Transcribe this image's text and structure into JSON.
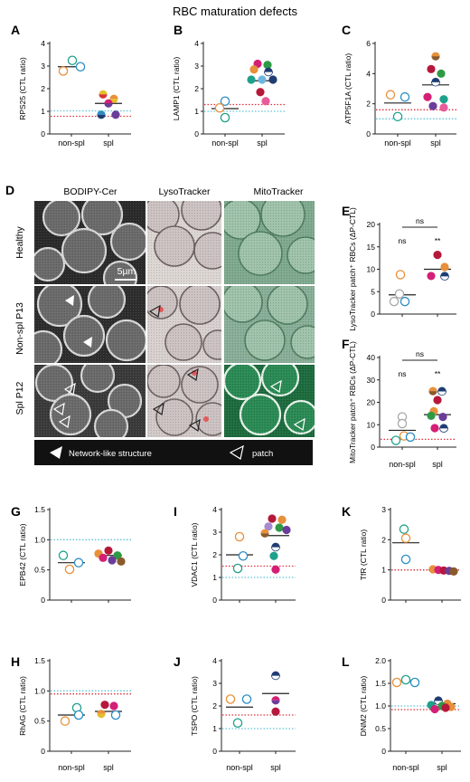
{
  "figure": {
    "title": "RBC maturation defects"
  },
  "panel_d": {
    "label": "D",
    "columns": [
      "BODIPY-Cer",
      "LysoTracker",
      "MitoTracker"
    ],
    "rows": [
      "Healthy",
      "Non-spl P13",
      "Spl P12"
    ],
    "scale_bar": "5µm",
    "legend": {
      "network": "Network-like structure",
      "patch": "patch"
    }
  },
  "colors": {
    "red_dotted": "#e0313e",
    "blue_dotted": "#5fc3d8",
    "mean_line": "#222222"
  },
  "chart_data": [
    {
      "id": "A",
      "type": "scatter",
      "ylabel": "RPS25 (CTL ratio)",
      "ylim": [
        0,
        4
      ],
      "yticks": [
        0,
        1,
        2,
        3,
        4
      ],
      "categories": [
        "non-spl",
        "spl"
      ],
      "ref_red": 0.78,
      "ref_blue": 1.02,
      "points": [
        {
          "cat": 0,
          "y": 2.78,
          "dx": -9,
          "style": "orange-o"
        },
        {
          "cat": 0,
          "y": 3.25,
          "dx": 1,
          "style": "teal-o"
        },
        {
          "cat": 0,
          "y": 2.97,
          "dx": 10,
          "style": "blue-o"
        },
        {
          "cat": 1,
          "y": 1.75,
          "dx": -6,
          "style": "yellow-red"
        },
        {
          "cat": 1,
          "y": 1.55,
          "dx": 6,
          "style": "orange-yellow"
        },
        {
          "cat": 1,
          "y": 1.35,
          "dx": 0,
          "style": "magenta-purple"
        },
        {
          "cat": 1,
          "y": 0.85,
          "dx": -8,
          "style": "blue-navy"
        },
        {
          "cat": 1,
          "y": 0.85,
          "dx": 8,
          "style": "purple"
        }
      ],
      "means": [
        2.97,
        1.35
      ]
    },
    {
      "id": "B",
      "type": "scatter",
      "ylabel": "LAMP1 (CTL ratio)",
      "ylim": [
        0,
        4
      ],
      "yticks": [
        0,
        1,
        2,
        3,
        4
      ],
      "categories": [
        "non-spl",
        "spl"
      ],
      "ref_red": 1.3,
      "ref_blue": 1.0,
      "points": [
        {
          "cat": 0,
          "y": 1.45,
          "dx": 0,
          "style": "blue-o"
        },
        {
          "cat": 0,
          "y": 1.15,
          "dx": -6,
          "style": "orange-o"
        },
        {
          "cat": 0,
          "y": 0.72,
          "dx": 0,
          "style": "teal-o"
        },
        {
          "cat": 1,
          "y": 3.1,
          "dx": -5,
          "style": "magenta"
        },
        {
          "cat": 1,
          "y": 3.05,
          "dx": 6,
          "style": "green"
        },
        {
          "cat": 1,
          "y": 2.85,
          "dx": -9,
          "style": "orange"
        },
        {
          "cat": 1,
          "y": 2.75,
          "dx": 7,
          "style": "navy-white"
        },
        {
          "cat": 1,
          "y": 2.4,
          "dx": -12,
          "style": "teal"
        },
        {
          "cat": 1,
          "y": 2.4,
          "dx": 0,
          "style": "lightblue"
        },
        {
          "cat": 1,
          "y": 2.4,
          "dx": 12,
          "style": "navy"
        },
        {
          "cat": 1,
          "y": 1.85,
          "dx": -2,
          "style": "crimson"
        },
        {
          "cat": 1,
          "y": 1.45,
          "dx": 4,
          "style": "pink"
        }
      ],
      "means": [
        1.12,
        2.35
      ]
    },
    {
      "id": "C",
      "type": "scatter",
      "ylabel": "ATP5F1A (CTL ratio)",
      "ylim": [
        0,
        6
      ],
      "yticks": [
        0,
        2,
        4,
        6
      ],
      "categories": [
        "non-spl",
        "spl"
      ],
      "ref_red": 1.6,
      "ref_blue": 1.0,
      "points": [
        {
          "cat": 0,
          "y": 2.6,
          "dx": -8,
          "style": "orange-o"
        },
        {
          "cat": 0,
          "y": 2.45,
          "dx": 8,
          "style": "blue-o"
        },
        {
          "cat": 0,
          "y": 1.15,
          "dx": 0,
          "style": "teal-o"
        },
        {
          "cat": 1,
          "y": 5.15,
          "dx": 0,
          "style": "orange-brown"
        },
        {
          "cat": 1,
          "y": 4.3,
          "dx": -5,
          "style": "crimson"
        },
        {
          "cat": 1,
          "y": 4.0,
          "dx": 6,
          "style": "green"
        },
        {
          "cat": 1,
          "y": 3.45,
          "dx": 0,
          "style": "navy-white"
        },
        {
          "cat": 1,
          "y": 2.45,
          "dx": -9,
          "style": "magenta"
        },
        {
          "cat": 1,
          "y": 2.3,
          "dx": 9,
          "style": "teal"
        },
        {
          "cat": 1,
          "y": 1.85,
          "dx": -3,
          "style": "purple"
        },
        {
          "cat": 1,
          "y": 1.75,
          "dx": 9,
          "style": "pink"
        }
      ],
      "means": [
        2.05,
        3.25
      ]
    },
    {
      "id": "E",
      "type": "scatter",
      "ylabel": "LysoTracker patch⁺ RBCs (ΔP-CTL)",
      "ylim": [
        0,
        20
      ],
      "yticks": [
        0,
        5,
        10,
        15,
        20
      ],
      "categories": [
        "",
        ""
      ],
      "ref_red": null,
      "ref_blue": null,
      "sig": {
        "bracket": "ns",
        "left": "ns",
        "right": "**"
      },
      "points": [
        {
          "cat": 0,
          "y": 8.8,
          "dx": -2,
          "style": "orange-o"
        },
        {
          "cat": 0,
          "y": 4.5,
          "dx": -3,
          "style": "gray-o"
        },
        {
          "cat": 0,
          "y": 2.8,
          "dx": -9,
          "style": "gray-o"
        },
        {
          "cat": 0,
          "y": 2.8,
          "dx": 3,
          "style": "blue-o"
        },
        {
          "cat": 1,
          "y": 13.2,
          "dx": 0,
          "style": "crimson"
        },
        {
          "cat": 1,
          "y": 10.5,
          "dx": 8,
          "style": "orange"
        },
        {
          "cat": 1,
          "y": 8.5,
          "dx": -7,
          "style": "magenta"
        },
        {
          "cat": 1,
          "y": 8.5,
          "dx": 8,
          "style": "navy-white"
        }
      ],
      "means": [
        4.3,
        10.0
      ]
    },
    {
      "id": "F",
      "type": "scatter",
      "ylabel": "MitoTracker patch⁺ RBCs (ΔP-CTL)",
      "ylim": [
        0,
        40
      ],
      "yticks": [
        0,
        10,
        20,
        30,
        40
      ],
      "categories": [
        "non-spl",
        "spl"
      ],
      "ref_red": 3.5,
      "ref_blue": null,
      "sig": {
        "bracket": "ns",
        "left": "ns",
        "right": "**"
      },
      "points": [
        {
          "cat": 0,
          "y": 13.5,
          "dx": 0,
          "style": "gray-o"
        },
        {
          "cat": 0,
          "y": 10.5,
          "dx": 0,
          "style": "gray-o"
        },
        {
          "cat": 0,
          "y": 5.0,
          "dx": 2,
          "style": "orange-o"
        },
        {
          "cat": 0,
          "y": 4.5,
          "dx": 9,
          "style": "blue-o"
        },
        {
          "cat": 0,
          "y": 3.0,
          "dx": -7,
          "style": "teal-o"
        },
        {
          "cat": 1,
          "y": 25.0,
          "dx": -5,
          "style": "orange-brown"
        },
        {
          "cat": 1,
          "y": 25.0,
          "dx": 5,
          "style": "navy-white"
        },
        {
          "cat": 1,
          "y": 21.0,
          "dx": 0,
          "style": "crimson"
        },
        {
          "cat": 1,
          "y": 16.0,
          "dx": -4,
          "style": "orange"
        },
        {
          "cat": 1,
          "y": 14.0,
          "dx": -7,
          "style": "green"
        },
        {
          "cat": 1,
          "y": 13.5,
          "dx": 6,
          "style": "purple"
        },
        {
          "cat": 1,
          "y": 8.5,
          "dx": -3,
          "style": "magenta"
        },
        {
          "cat": 1,
          "y": 8.5,
          "dx": 7,
          "style": "navy-white"
        }
      ],
      "means": [
        7.5,
        14.5
      ]
    },
    {
      "id": "G",
      "type": "scatter",
      "ylabel": "EPB42 (CTL ratio)",
      "ylim": [
        0,
        1.5
      ],
      "yticks": [
        0,
        0.5,
        1.0,
        1.5
      ],
      "categories": [
        "",
        ""
      ],
      "ref_red": null,
      "ref_blue": 1.0,
      "points": [
        {
          "cat": 0,
          "y": 0.74,
          "dx": -9,
          "style": "teal-o"
        },
        {
          "cat": 0,
          "y": 0.62,
          "dx": 8,
          "style": "blue-o"
        },
        {
          "cat": 0,
          "y": 0.51,
          "dx": -2,
          "style": "orange-o"
        },
        {
          "cat": 1,
          "y": 0.82,
          "dx": 0,
          "style": "crimson"
        },
        {
          "cat": 1,
          "y": 0.77,
          "dx": -11,
          "style": "orange"
        },
        {
          "cat": 1,
          "y": 0.74,
          "dx": 10,
          "style": "green"
        },
        {
          "cat": 1,
          "y": 0.7,
          "dx": -6,
          "style": "magenta"
        },
        {
          "cat": 1,
          "y": 0.66,
          "dx": 4,
          "style": "purple"
        },
        {
          "cat": 1,
          "y": 0.64,
          "dx": 14,
          "style": "brown"
        }
      ],
      "means": [
        0.62,
        0.74
      ]
    },
    {
      "id": "H",
      "type": "scatter",
      "ylabel": "RhAG (CTL ratio)",
      "ylim": [
        0,
        1.5
      ],
      "yticks": [
        0,
        0.5,
        1.0,
        1.5
      ],
      "categories": [
        "non-spl",
        "spl"
      ],
      "ref_red": 0.95,
      "ref_blue": 1.0,
      "points": [
        {
          "cat": 0,
          "y": 0.72,
          "dx": 6,
          "style": "teal-o"
        },
        {
          "cat": 0,
          "y": 0.6,
          "dx": 8,
          "style": "blue-o"
        },
        {
          "cat": 0,
          "y": 0.5,
          "dx": -7,
          "style": "orange-o"
        },
        {
          "cat": 1,
          "y": 0.77,
          "dx": -4,
          "style": "crimson"
        },
        {
          "cat": 1,
          "y": 0.75,
          "dx": 6,
          "style": "magenta"
        },
        {
          "cat": 1,
          "y": 0.62,
          "dx": -8,
          "style": "orange-yellow"
        },
        {
          "cat": 1,
          "y": 0.6,
          "dx": 8,
          "style": "blue-o"
        }
      ],
      "means": [
        0.6,
        0.66
      ]
    },
    {
      "id": "I",
      "type": "scatter",
      "ylabel": "VDAC1 (CTL ratio)",
      "ylim": [
        0,
        4
      ],
      "yticks": [
        0,
        1,
        2,
        3,
        4
      ],
      "categories": [
        "",
        ""
      ],
      "ref_red": 1.5,
      "ref_blue": 1.0,
      "points": [
        {
          "cat": 0,
          "y": 2.8,
          "dx": 0,
          "style": "orange-o"
        },
        {
          "cat": 0,
          "y": 1.95,
          "dx": 4,
          "style": "blue-o"
        },
        {
          "cat": 0,
          "y": 1.4,
          "dx": -2,
          "style": "teal-o"
        },
        {
          "cat": 1,
          "y": 3.6,
          "dx": -4,
          "style": "crimson"
        },
        {
          "cat": 1,
          "y": 3.55,
          "dx": 7,
          "style": "orange"
        },
        {
          "cat": 1,
          "y": 3.25,
          "dx": -8,
          "style": "lavender"
        },
        {
          "cat": 1,
          "y": 3.2,
          "dx": 4,
          "style": "green"
        },
        {
          "cat": 1,
          "y": 3.1,
          "dx": 12,
          "style": "purple"
        },
        {
          "cat": 1,
          "y": 2.95,
          "dx": -12,
          "style": "orange-brown"
        },
        {
          "cat": 1,
          "y": 2.35,
          "dx": 0,
          "style": "navy-white"
        },
        {
          "cat": 1,
          "y": 1.95,
          "dx": -2,
          "style": "teal"
        },
        {
          "cat": 1,
          "y": 1.35,
          "dx": 0,
          "style": "magenta"
        }
      ],
      "means": [
        2.0,
        2.85
      ]
    },
    {
      "id": "J",
      "type": "scatter",
      "ylabel": "TSPO (CTL ratio)",
      "ylim": [
        0,
        4
      ],
      "yticks": [
        0,
        1,
        2,
        3,
        4
      ],
      "categories": [
        "non-spl",
        "spl"
      ],
      "ref_red": 1.6,
      "ref_blue": 1.0,
      "points": [
        {
          "cat": 0,
          "y": 2.3,
          "dx": -10,
          "style": "orange-o"
        },
        {
          "cat": 0,
          "y": 2.3,
          "dx": 8,
          "style": "blue-o"
        },
        {
          "cat": 0,
          "y": 1.25,
          "dx": -2,
          "style": "teal-o"
        },
        {
          "cat": 1,
          "y": 3.35,
          "dx": 0,
          "style": "navy-white"
        },
        {
          "cat": 1,
          "y": 2.25,
          "dx": 0,
          "style": "magenta-purple"
        },
        {
          "cat": 1,
          "y": 1.75,
          "dx": 0,
          "style": "crimson"
        }
      ],
      "means": [
        1.95,
        2.55
      ]
    },
    {
      "id": "K",
      "type": "scatter",
      "ylabel": "TfR (CTL ratio)",
      "ylim": [
        0,
        3
      ],
      "yticks": [
        0,
        1,
        2,
        3
      ],
      "categories": [
        "",
        ""
      ],
      "ref_red": 1.0,
      "ref_blue": 1.0,
      "points": [
        {
          "cat": 0,
          "y": 2.35,
          "dx": -2,
          "style": "teal-o"
        },
        {
          "cat": 0,
          "y": 2.05,
          "dx": 0,
          "style": "orange-o"
        },
        {
          "cat": 0,
          "y": 1.35,
          "dx": 0,
          "style": "blue-o"
        },
        {
          "cat": 1,
          "y": 1.02,
          "dx": -10,
          "style": "orange"
        },
        {
          "cat": 1,
          "y": 1.0,
          "dx": -4,
          "style": "magenta"
        },
        {
          "cat": 1,
          "y": 0.98,
          "dx": 2,
          "style": "crimson"
        },
        {
          "cat": 1,
          "y": 0.97,
          "dx": 8,
          "style": "purple"
        },
        {
          "cat": 1,
          "y": 0.95,
          "dx": 13,
          "style": "brown"
        }
      ],
      "means": [
        1.9,
        1.0
      ]
    },
    {
      "id": "L",
      "type": "scatter",
      "ylabel": "DNM2 (CTL ratio)",
      "ylim": [
        0,
        2.0
      ],
      "yticks": [
        0,
        0.5,
        1.0,
        1.5,
        2.0
      ],
      "categories": [
        "non-spl",
        "spl"
      ],
      "ref_red": 0.92,
      "ref_blue": 1.0,
      "points": [
        {
          "cat": 0,
          "y": 1.52,
          "dx": -10,
          "style": "orange-o"
        },
        {
          "cat": 0,
          "y": 1.58,
          "dx": 0,
          "style": "teal-o"
        },
        {
          "cat": 0,
          "y": 1.52,
          "dx": 10,
          "style": "blue-o"
        },
        {
          "cat": 1,
          "y": 1.12,
          "dx": -4,
          "style": "navy-white"
        },
        {
          "cat": 1,
          "y": 1.05,
          "dx": 6,
          "style": "orange-brown"
        },
        {
          "cat": 1,
          "y": 1.02,
          "dx": -12,
          "style": "teal"
        },
        {
          "cat": 1,
          "y": 1.0,
          "dx": 0,
          "style": "green"
        },
        {
          "cat": 1,
          "y": 0.98,
          "dx": 10,
          "style": "orange"
        },
        {
          "cat": 1,
          "y": 0.96,
          "dx": 4,
          "style": "crimson"
        },
        {
          "cat": 1,
          "y": 0.93,
          "dx": -8,
          "style": "magenta"
        }
      ],
      "means": [
        1.55,
        1.05
      ]
    }
  ]
}
